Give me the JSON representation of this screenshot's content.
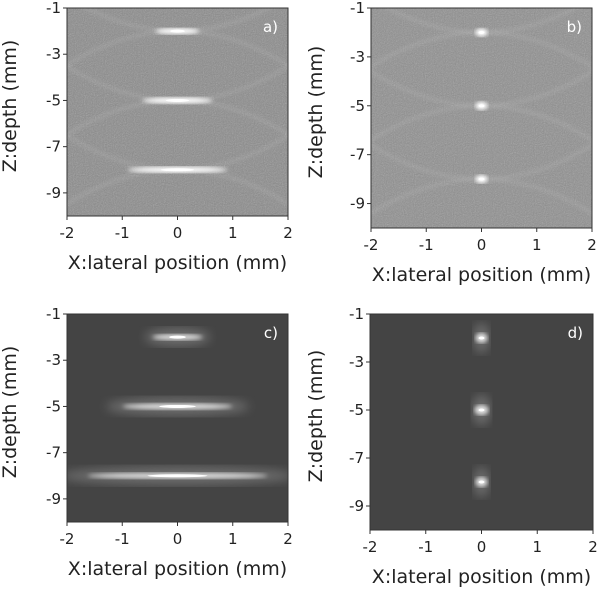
{
  "chart_data": [
    {
      "type": "image",
      "panel_label": "a)",
      "xlabel": "X:lateral position (mm)",
      "ylabel": "Z:depth (mm)",
      "background": "#8a8a8a",
      "xlim": [
        -2,
        2
      ],
      "ylim": [
        -10,
        -1
      ],
      "xticks": [
        -2,
        -1,
        0,
        1,
        2
      ],
      "yticks": [
        -1,
        -3,
        -5,
        -7,
        -9
      ],
      "targets": {
        "x": [
          0,
          0,
          0
        ],
        "y": [
          -2,
          -5,
          -8
        ]
      }
    },
    {
      "type": "image",
      "panel_label": "b)",
      "xlabel": "X:lateral position (mm)",
      "ylabel": "Z:depth (mm)",
      "background": "#8e8e8e",
      "xlim": [
        -2,
        2
      ],
      "ylim": [
        -10,
        -1
      ],
      "xticks": [
        -2,
        -1,
        0,
        1,
        2
      ],
      "yticks": [
        -1,
        -3,
        -5,
        -7,
        -9
      ],
      "targets": {
        "x": [
          0,
          0,
          0
        ],
        "y": [
          -2,
          -5,
          -8
        ]
      }
    },
    {
      "type": "image",
      "panel_label": "c)",
      "xlabel": "X:lateral position (mm)",
      "ylabel": "Z:depth (mm)",
      "background": "#444444",
      "xlim": [
        -2,
        2
      ],
      "ylim": [
        -10,
        -1
      ],
      "xticks": [
        -2,
        -1,
        0,
        1,
        2
      ],
      "yticks": [
        -1,
        -3,
        -5,
        -7,
        -9
      ],
      "targets": {
        "x": [
          0,
          0,
          0
        ],
        "y": [
          -2,
          -5,
          -8
        ]
      }
    },
    {
      "type": "image",
      "panel_label": "d)",
      "xlabel": "X:lateral position (mm)",
      "ylabel": "Z:depth (mm)",
      "background": "#444444",
      "xlim": [
        -2,
        2
      ],
      "ylim": [
        -10,
        -1
      ],
      "xticks": [
        -2,
        -1,
        0,
        1,
        2
      ],
      "yticks": [
        -1,
        -3,
        -5,
        -7,
        -9
      ],
      "targets": {
        "x": [
          0,
          0,
          0
        ],
        "y": [
          -2,
          -5,
          -8
        ]
      }
    }
  ]
}
